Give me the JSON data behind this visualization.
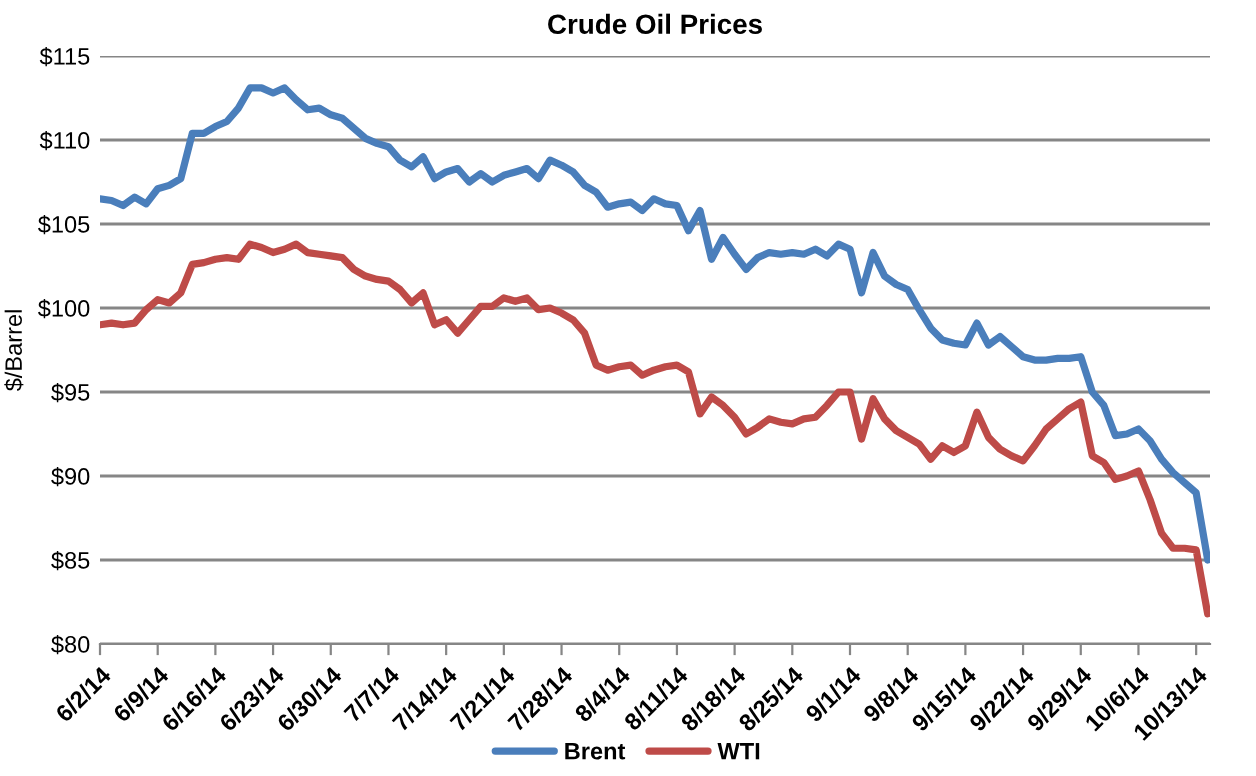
{
  "chart_data": {
    "type": "line",
    "title": "Crude Oil Prices",
    "ylabel": "$/Barrel",
    "categories": [
      "6/2/14",
      null,
      null,
      null,
      null,
      "6/9/14",
      null,
      null,
      null,
      null,
      "6/16/14",
      null,
      null,
      null,
      null,
      "6/23/14",
      null,
      null,
      null,
      null,
      "6/30/14",
      null,
      null,
      null,
      null,
      "7/7/14",
      null,
      null,
      null,
      null,
      "7/14/14",
      null,
      null,
      null,
      null,
      "7/21/14",
      null,
      null,
      null,
      null,
      "7/28/14",
      null,
      null,
      null,
      null,
      "8/4/14",
      null,
      null,
      null,
      null,
      "8/11/14",
      null,
      null,
      null,
      null,
      "8/18/14",
      null,
      null,
      null,
      null,
      "8/25/14",
      null,
      null,
      null,
      null,
      "9/1/14",
      null,
      null,
      null,
      null,
      "9/8/14",
      null,
      null,
      null,
      null,
      "9/15/14",
      null,
      null,
      null,
      null,
      "9/22/14",
      null,
      null,
      null,
      null,
      "9/29/14",
      null,
      null,
      null,
      null,
      "10/6/14",
      null,
      null,
      null,
      null,
      "10/13/14",
      null
    ],
    "series": [
      {
        "name": "Brent",
        "color": "#4a7ebb",
        "values": [
          106.5,
          106.4,
          106.1,
          106.6,
          106.2,
          107.1,
          107.3,
          107.7,
          110.4,
          110.4,
          110.8,
          111.1,
          111.9,
          113.1,
          113.1,
          112.8,
          113.1,
          112.4,
          111.8,
          111.9,
          111.5,
          111.3,
          110.7,
          110.1,
          109.8,
          109.6,
          108.8,
          108.4,
          109.0,
          107.7,
          108.1,
          108.3,
          107.5,
          108.0,
          107.5,
          107.9,
          108.1,
          108.3,
          107.7,
          108.8,
          108.5,
          108.1,
          107.3,
          106.9,
          106.0,
          106.2,
          106.3,
          105.8,
          106.5,
          106.2,
          106.1,
          104.6,
          105.8,
          102.9,
          104.2,
          103.2,
          102.3,
          103.0,
          103.3,
          103.2,
          103.3,
          103.2,
          103.5,
          103.1,
          103.8,
          103.5,
          100.9,
          103.3,
          101.9,
          101.4,
          101.1,
          99.9,
          98.8,
          98.1,
          97.9,
          97.8,
          99.1,
          97.8,
          98.3,
          97.7,
          97.1,
          96.9,
          96.9,
          97.0,
          97.0,
          97.1,
          95.0,
          94.2,
          92.4,
          92.5,
          92.8,
          92.1,
          91.0,
          90.2,
          89.6,
          89.0,
          85.0
        ]
      },
      {
        "name": "WTI",
        "color": "#be4b48",
        "values": [
          99.0,
          99.1,
          99.0,
          99.1,
          99.9,
          100.5,
          100.3,
          100.9,
          102.6,
          102.7,
          102.9,
          103.0,
          102.9,
          103.8,
          103.6,
          103.3,
          103.5,
          103.8,
          103.3,
          103.2,
          103.1,
          103.0,
          102.3,
          101.9,
          101.7,
          101.6,
          101.1,
          100.3,
          100.9,
          99.0,
          99.3,
          98.5,
          99.3,
          100.1,
          100.1,
          100.6,
          100.4,
          100.6,
          99.9,
          100.0,
          99.7,
          99.3,
          98.5,
          96.6,
          96.3,
          96.5,
          96.6,
          96.0,
          96.3,
          96.5,
          96.6,
          96.2,
          93.7,
          94.7,
          94.2,
          93.5,
          92.5,
          92.9,
          93.4,
          93.2,
          93.1,
          93.4,
          93.5,
          94.2,
          95.0,
          95.0,
          92.2,
          94.6,
          93.4,
          92.7,
          92.3,
          91.9,
          91.0,
          91.8,
          91.4,
          91.8,
          93.8,
          92.3,
          91.6,
          91.2,
          90.9,
          91.8,
          92.8,
          93.4,
          94.0,
          94.4,
          91.2,
          90.8,
          89.8,
          90.0,
          90.3,
          88.6,
          86.6,
          85.7,
          85.7,
          85.6,
          81.8
        ]
      }
    ],
    "ylim": [
      80,
      115
    ],
    "yticks": [
      {
        "value": 80,
        "label": "$80"
      },
      {
        "value": 85,
        "label": "$85"
      },
      {
        "value": 90,
        "label": "$90"
      },
      {
        "value": 95,
        "label": "$95"
      },
      {
        "value": 100,
        "label": "$100"
      },
      {
        "value": 105,
        "label": "$105"
      },
      {
        "value": 110,
        "label": "$110"
      },
      {
        "value": 115,
        "label": "$115"
      }
    ],
    "grid": "y",
    "legend": "bottom",
    "marker": "none",
    "line_style": "solid"
  }
}
